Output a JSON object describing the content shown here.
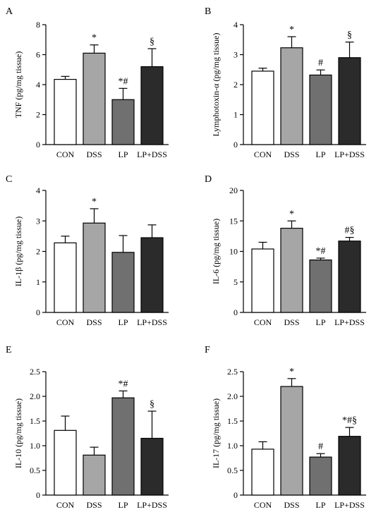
{
  "colors": {
    "CON": "#ffffff",
    "DSS": "#a6a6a6",
    "LP": "#707070",
    "LP+DSS": "#2b2b2b"
  },
  "chart_data": [
    {
      "panel": "A",
      "type": "bar",
      "ylabel": "TNF (pg/mg tissue)",
      "categories": [
        "CON",
        "DSS",
        "LP",
        "LP+DSS"
      ],
      "values": [
        4.35,
        6.1,
        3.0,
        5.2
      ],
      "errors": [
        0.2,
        0.55,
        0.75,
        1.2
      ],
      "annotations": [
        "",
        "*",
        "*#",
        "§"
      ],
      "ylim": [
        0,
        8
      ],
      "yticks": [
        "0",
        "2",
        "4",
        "6",
        "8"
      ]
    },
    {
      "panel": "B",
      "type": "bar",
      "ylabel": "Lymphotoxin-α (pg/mg tissue)",
      "categories": [
        "CON",
        "DSS",
        "LP",
        "LP+DSS"
      ],
      "values": [
        2.45,
        3.23,
        2.32,
        2.9
      ],
      "errors": [
        0.1,
        0.37,
        0.17,
        0.52
      ],
      "annotations": [
        "",
        "*",
        "#",
        "§"
      ],
      "ylim": [
        0,
        4
      ],
      "yticks": [
        "0",
        "1",
        "2",
        "3",
        "4"
      ]
    },
    {
      "panel": "C",
      "type": "bar",
      "ylabel": "IL-1β (pg/mg tissue)",
      "categories": [
        "CON",
        "DSS",
        "LP",
        "LP+DSS"
      ],
      "values": [
        2.28,
        2.93,
        1.97,
        2.45
      ],
      "errors": [
        0.22,
        0.47,
        0.55,
        0.42
      ],
      "annotations": [
        "",
        "*",
        "",
        ""
      ],
      "ylim": [
        0,
        4
      ],
      "yticks": [
        "0",
        "1",
        "2",
        "3",
        "4"
      ]
    },
    {
      "panel": "D",
      "type": "bar",
      "ylabel": "IL-6 (pg/mg tissue)",
      "categories": [
        "CON",
        "DSS",
        "LP",
        "LP+DSS"
      ],
      "values": [
        10.4,
        13.8,
        8.6,
        11.7
      ],
      "errors": [
        1.1,
        1.2,
        0.3,
        0.6
      ],
      "annotations": [
        "",
        "*",
        "*#",
        "#§"
      ],
      "ylim": [
        0,
        20
      ],
      "yticks": [
        "0",
        "5",
        "10",
        "15",
        "20"
      ]
    },
    {
      "panel": "E",
      "type": "bar",
      "ylabel": "IL-10 (pg/mg tissue)",
      "categories": [
        "CON",
        "DSS",
        "LP",
        "LP+DSS"
      ],
      "values": [
        1.31,
        0.81,
        1.97,
        1.15
      ],
      "errors": [
        0.29,
        0.16,
        0.14,
        0.55
      ],
      "annotations": [
        "",
        "",
        "*#",
        "§"
      ],
      "ylim": [
        0,
        2.5
      ],
      "yticks": [
        "0",
        "0.5",
        "1.0",
        "1.5",
        "2.0",
        "2.5"
      ]
    },
    {
      "panel": "F",
      "type": "bar",
      "ylabel": "IL-17 (pg/mg tissue)",
      "categories": [
        "CON",
        "DSS",
        "LP",
        "LP+DSS"
      ],
      "values": [
        0.93,
        2.2,
        0.77,
        1.19
      ],
      "errors": [
        0.15,
        0.16,
        0.07,
        0.18
      ],
      "annotations": [
        "",
        "*",
        "#",
        "*#§"
      ],
      "ylim": [
        0,
        2.5
      ],
      "yticks": [
        "0",
        "0.5",
        "1.0",
        "1.5",
        "2.0",
        "2.5"
      ]
    }
  ]
}
